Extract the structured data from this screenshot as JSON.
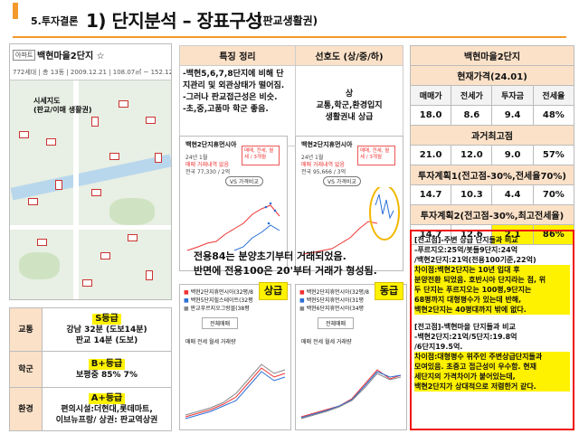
{
  "header": {
    "prefix": "5.투자결론",
    "title": "1) 단지분석 – 장표구성",
    "subtitle": "(판교생활권)"
  },
  "map": {
    "tag": "아파트",
    "name": "백현마을2단지 ☆",
    "info": "772세대 | 총 13동 | 2009.12.21 | 108.07㎡ ~ 152.12㎡",
    "label_line1": "시세지도",
    "label_line2": "(판교/이매 생활권)"
  },
  "features": {
    "head_left": "특징 정리",
    "head_right": "선호도 (상/중/하)",
    "left_lines": [
      "-백현5,6,7,8단지에 비해 단",
      "지관리 및 외관상태가 떨어짐.",
      "-그러나 판교접근성은 비슷.",
      "-초,중,고품마 학군 좋음."
    ],
    "right_lines": [
      "상",
      "교통,학군,환경입지",
      "생활권내 상급"
    ]
  },
  "price_table": {
    "title": "백현마을2단지",
    "current": "현재가격(24.01)",
    "cols": [
      "매매가",
      "전세가",
      "투자금",
      "전세율"
    ],
    "row_current": [
      "18.0",
      "8.6",
      "9.4",
      "48%"
    ],
    "peak": "과거최고점",
    "row_peak": [
      "21.0",
      "12.0",
      "9.0",
      "57%"
    ],
    "plan1": "투자계획1(전고점-30%,전세율70%)",
    "row_plan1": [
      "14.7",
      "10.3",
      "4.4",
      "70%"
    ],
    "plan2": "투자계획2(전고점-30%,최고전세율)",
    "row_plan2": [
      "14.7",
      "12.6",
      "2.1",
      "86%"
    ]
  },
  "notes": {
    "p1": [
      "[전고점]-주변 상급 단지들과 비교",
      "-푸르지오:25억/봇들9단지:24억",
      "/백현2단지:21억(전용100기준,22억)"
    ],
    "p1_hl": [
      "차이점:백현2단지는 10년 입대 후",
      "분양전환 되었음. 호반시아 단지라는 점, 위",
      "두 단지는 푸르지오는 100평,9단지는",
      "68평까지 대형평수가 있는데 반해,",
      "백현2단지는 40평대까지 밖에 없다."
    ],
    "p2": [
      "[전고점]-백현마을 단지들과 비교",
      "-백현2단지:21억/5단지:19.8억",
      "/6단지19.5억."
    ],
    "p2_hl": [
      "차이점:대형평수 위주인 주변상급단지들과",
      "모여있음. 초중고 접근성이 우수함. 현재",
      "세단지의 가격차이가 붙어있는데,",
      "백현2단지가 상대적으로 저렴한거 같다."
    ]
  },
  "cards": {
    "c1_title": "백현2단지휴먼시아",
    "c1_meta1": "24년 1월",
    "c1_meta2": "매매 거래내역 없음",
    "c1_meta3": "전국 77,330 / 2억",
    "c1_pill": "매매, 전세, 월세 / 3개월",
    "c2_title": "백현2단지휴먼시아",
    "c2_meta1": "24년 1월",
    "c2_meta2": "매매 거래내역 없음",
    "c2_meta3": "전국 95,666 / 3억",
    "c2_pill": "매매, 전세, 월세 / 3개월",
    "vs": "VS 가격비교",
    "legend_labels": [
      "매매",
      "전세",
      "월세",
      "거래량"
    ]
  },
  "overlay": {
    "line1": "전용84는 분양초기부터 거래되었음.",
    "line2": "반면에 전용100은 20'부터 거래가 형성됨."
  },
  "badges": {
    "upper": "상급",
    "equal": "동급"
  },
  "cmp1": {
    "rows": [
      "백현2단지휴먼시아(32평/8",
      "백현5단지힐스테이트(32평",
      "판교푸르지오그랑블(38평"
    ],
    "btn": "전체매매"
  },
  "cmp2": {
    "rows": [
      "백현2단지휴먼시아(32평/8",
      "백현5단지휴먼시아(31평",
      "백현6단지휴먼시아(34평"
    ],
    "btn": "전체매매"
  },
  "grade_table": {
    "r1_label": "교통",
    "r1_grade": "S등급",
    "r1_l1": "강남 32분 (도보14분)",
    "r1_l2": "판교 14분 (도보)",
    "r2_label": "학군",
    "r2_grade": "B+등급",
    "r2_l1": "보평중 85% 7%",
    "r3_label": "환경",
    "r3_grade": "A+등급",
    "r3_l1": "편의시설:더현대,롯데마트,",
    "r3_l2": "이브뉴프랑/ 상권: 판교역상권"
  },
  "colors": {
    "accent": "#f39a2b",
    "highlight": "#fff200",
    "red": "#e11111",
    "blue": "#2a6fd6"
  }
}
